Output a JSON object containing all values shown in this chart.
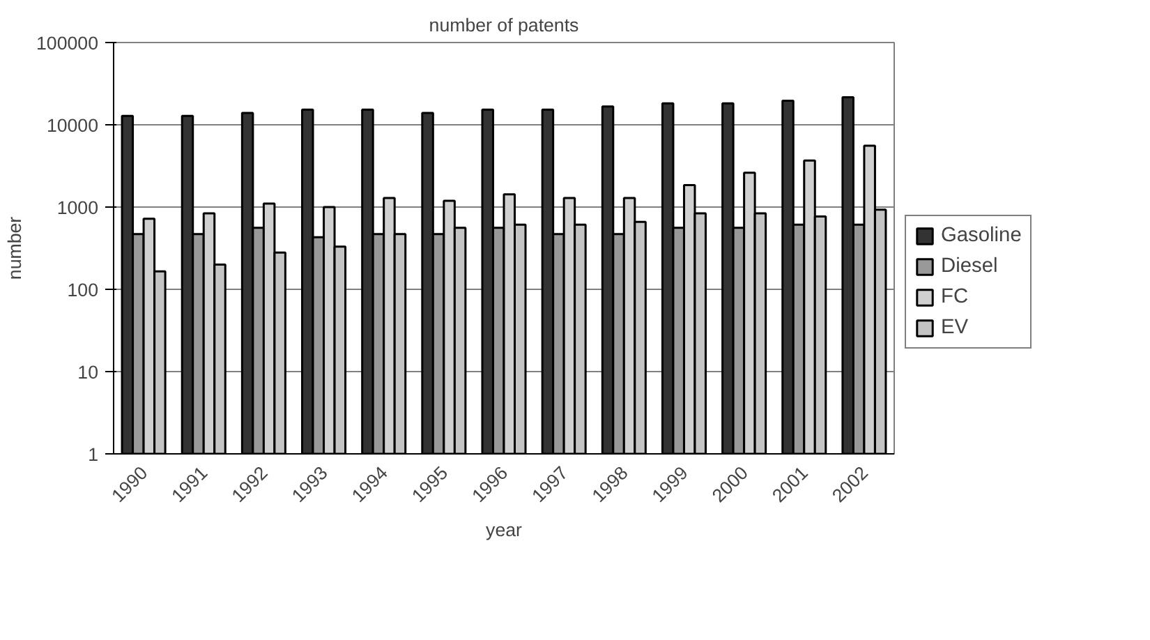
{
  "chart_data": {
    "type": "bar",
    "title": "number of patents",
    "xlabel": "year",
    "ylabel": "number",
    "categories": [
      "1990",
      "1991",
      "1992",
      "1993",
      "1994",
      "1995",
      "1996",
      "1997",
      "1998",
      "1999",
      "2000",
      "2001",
      "2002"
    ],
    "series": [
      {
        "name": "Gasoline",
        "color": "#333333",
        "values": [
          12800,
          12800,
          13900,
          15300,
          15300,
          13900,
          15300,
          15300,
          16700,
          18200,
          18200,
          19600,
          21600
        ]
      },
      {
        "name": "Diesel",
        "color": "#999999",
        "values": [
          470,
          470,
          560,
          430,
          470,
          470,
          560,
          470,
          470,
          560,
          560,
          610,
          610
        ]
      },
      {
        "name": "FC",
        "color": "#d0d0d0",
        "values": [
          720,
          840,
          1100,
          1000,
          1290,
          1190,
          1430,
          1290,
          1290,
          1850,
          2610,
          3670,
          5560
        ]
      },
      {
        "name": "EV",
        "color": "#c4c4c4",
        "values": [
          165,
          200,
          280,
          330,
          470,
          560,
          610,
          610,
          660,
          840,
          840,
          770,
          930
        ]
      }
    ],
    "log": true,
    "ylim": [
      1,
      100000
    ],
    "yticks": [
      1,
      10,
      100,
      1000,
      10000,
      100000
    ],
    "grid": "y",
    "legend": "right"
  }
}
